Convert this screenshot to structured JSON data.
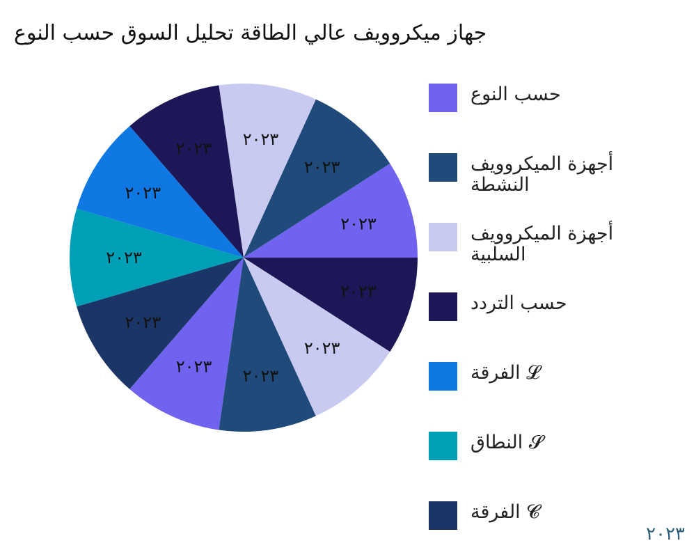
{
  "chart_data": {
    "type": "pie",
    "title": "جهاز ميكروويف عالي الطاقة تحليل السوق حسب النوع",
    "categories": [
      "حسب النوع",
      "أجهزة الميكروويف النشطة",
      "أجهزة الميكروويف السلبية",
      "حسب التردد",
      "الفرقة 𝓛",
      "النطاق 𝓢",
      "الفرقة 𝓒"
    ],
    "slices": [
      {
        "category": "حسب النوع",
        "value": 1,
        "color": "#6f63f0",
        "label": "٢٠٢٣"
      },
      {
        "category": "أجهزة الميكروويف النشطة",
        "value": 1,
        "color": "#1f4a7a",
        "label": "٢٠٢٣"
      },
      {
        "category": "أجهزة الميكروويف السلبية",
        "value": 1,
        "color": "#c9caf1",
        "label": "٢٠٢٣"
      },
      {
        "category": "حسب التردد",
        "value": 1,
        "color": "#1e1757",
        "label": "٢٠٢٣"
      },
      {
        "category": "الفرقة 𝓛",
        "value": 1,
        "color": "#0f78e3",
        "label": "٢٠٢٣"
      },
      {
        "category": "النطاق 𝓢",
        "value": 1,
        "color": "#009fb8",
        "label": "٢٠٢٣"
      },
      {
        "category": "الفرقة 𝓒",
        "value": 1,
        "color": "#1b3566",
        "label": "٢٠٢٣"
      },
      {
        "category": "حسب النوع",
        "value": 1,
        "color": "#6f63f0",
        "label": "٢٠٢٣"
      },
      {
        "category": "أجهزة الميكروويف النشطة",
        "value": 1,
        "color": "#1f4a7a",
        "label": "٢٠٢٣"
      },
      {
        "category": "أجهزة الميكروويف السلبية",
        "value": 1,
        "color": "#c9caf1",
        "label": "٢٠٢٣"
      },
      {
        "category": "حسب التردد",
        "value": 1,
        "color": "#1e1757",
        "label": "٢٠٢٣"
      }
    ],
    "legend": {
      "placement": "right",
      "entries": [
        {
          "label": "حسب النوع",
          "color": "#6f63f0"
        },
        {
          "label": "أجهزة الميكروويف النشطة",
          "color": "#1f4a7a"
        },
        {
          "label": "أجهزة الميكروويف السلبية",
          "color": "#c9caf1"
        },
        {
          "label": "حسب التردد",
          "color": "#1e1757"
        },
        {
          "label": "الفرقة 𝓛",
          "color": "#0f78e3"
        },
        {
          "label": "النطاق 𝓢",
          "color": "#009fb8"
        },
        {
          "label": "الفرقة 𝓒",
          "color": "#1b3566"
        }
      ]
    },
    "watermark": "٢٠٢٣"
  }
}
